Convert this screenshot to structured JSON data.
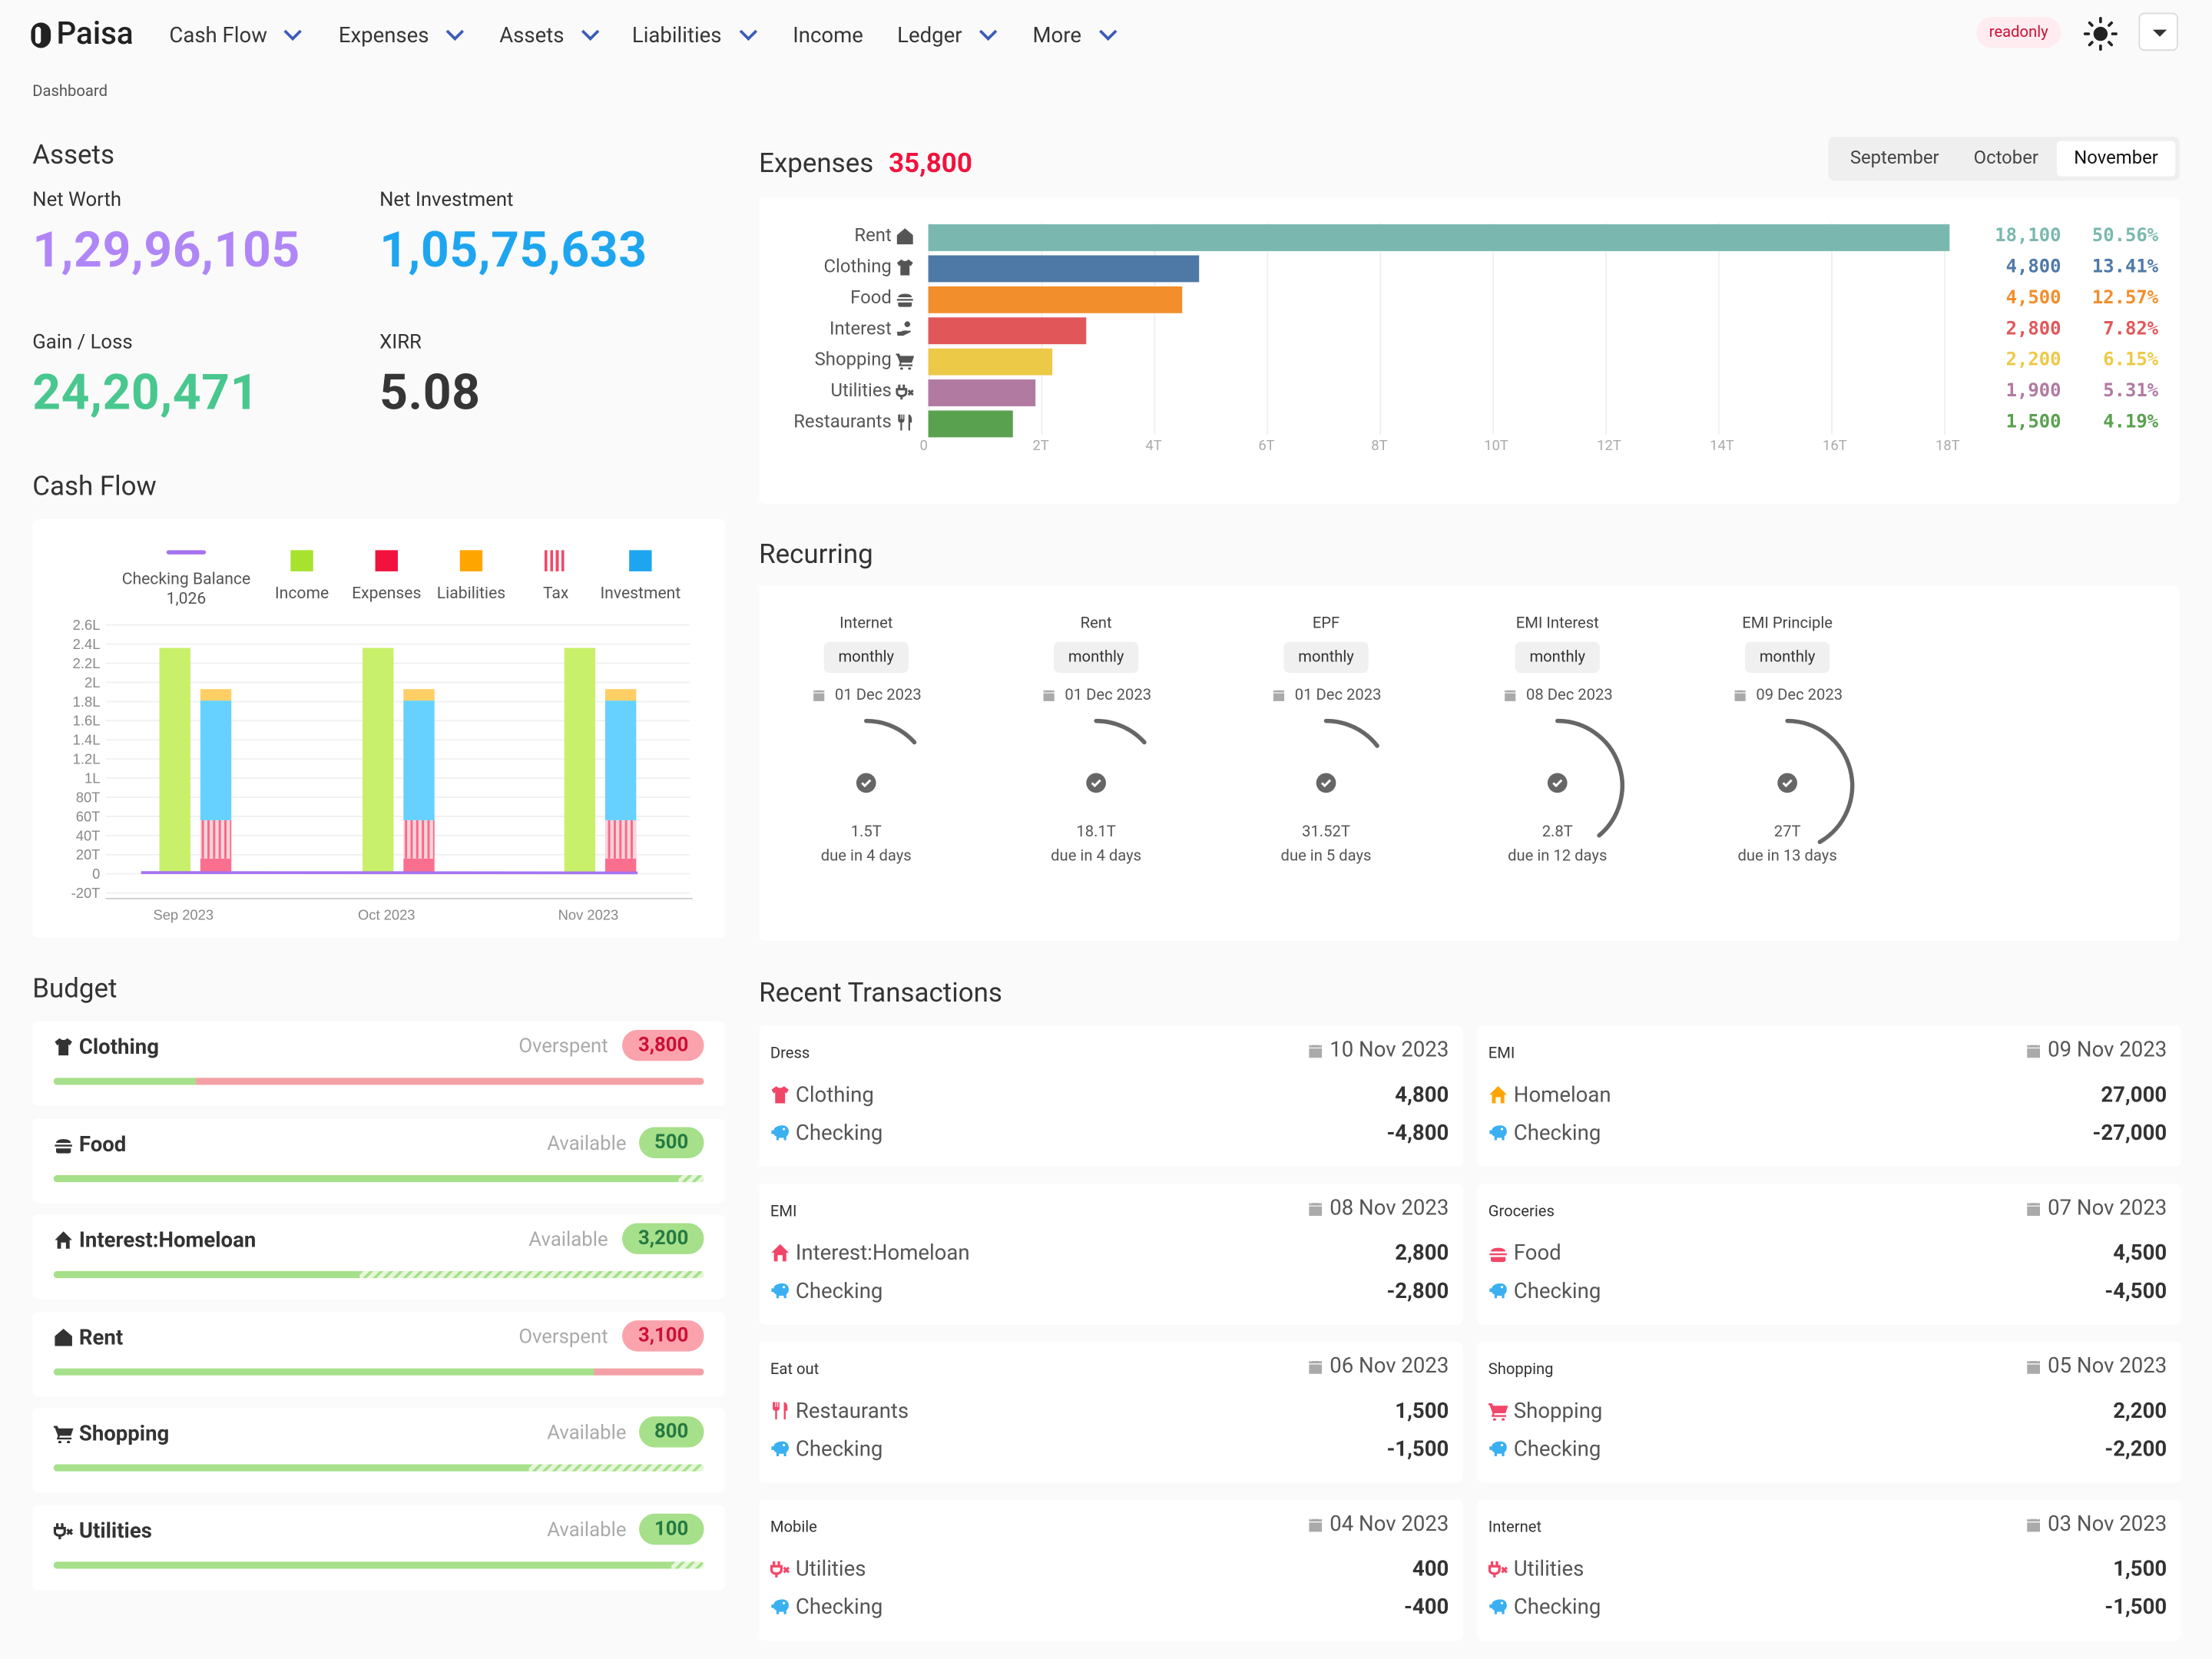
{
  "brand": "Paisa",
  "nav": [
    {
      "label": "Cash Flow",
      "dropdown": true
    },
    {
      "label": "Expenses",
      "dropdown": true
    },
    {
      "label": "Assets",
      "dropdown": true
    },
    {
      "label": "Liabilities",
      "dropdown": true
    },
    {
      "label": "Income",
      "dropdown": false
    },
    {
      "label": "Ledger",
      "dropdown": true
    },
    {
      "label": "More",
      "dropdown": true
    }
  ],
  "readonly": "readonly",
  "breadcrumb": "Dashboard",
  "assets": {
    "title": "Assets",
    "net_worth_label": "Net Worth",
    "net_worth": "1,29,96,105",
    "net_investment_label": "Net Investment",
    "net_investment": "1,05,75,633",
    "gain_label": "Gain / Loss",
    "gain": "24,20,471",
    "xirr_label": "XIRR",
    "xirr": "5.08"
  },
  "cashflow": {
    "title": "Cash Flow",
    "legend": [
      {
        "label": "Checking Balance",
        "sub": "1,026",
        "color": "#a574f0"
      },
      {
        "label": "Income",
        "color": "#a6e22e"
      },
      {
        "label": "Expenses",
        "color": "#f1123e"
      },
      {
        "label": "Liabilities",
        "color": "#ffa500"
      },
      {
        "label": "Tax",
        "color": "#f14668"
      },
      {
        "label": "Investment",
        "color": "#1ea5f0"
      }
    ]
  },
  "expenses": {
    "title": "Expenses",
    "total": "35,800",
    "months": [
      "September",
      "October",
      "November"
    ],
    "selected": "November"
  },
  "recurring_title": "Recurring",
  "recurring": [
    {
      "name": "Internet",
      "freq": "monthly",
      "date": "01 Dec 2023",
      "amount": "1.5T",
      "due": "due in 4 days"
    },
    {
      "name": "Rent",
      "freq": "monthly",
      "date": "01 Dec 2023",
      "amount": "18.1T",
      "due": "due in 4 days"
    },
    {
      "name": "EPF",
      "freq": "monthly",
      "date": "01 Dec 2023",
      "amount": "31.52T",
      "due": "due in 5 days"
    },
    {
      "name": "EMI Interest",
      "freq": "monthly",
      "date": "08 Dec 2023",
      "amount": "2.8T",
      "due": "due in 12 days"
    },
    {
      "name": "EMI Principle",
      "freq": "monthly",
      "date": "09 Dec 2023",
      "amount": "27T",
      "due": "due in 13 days"
    }
  ],
  "budget_title": "Budget",
  "budget": [
    {
      "name": "Clothing",
      "status": "Overspent",
      "amount": "3,800",
      "icon": "shirt-icon",
      "used": 0.22,
      "over": true
    },
    {
      "name": "Food",
      "status": "Available",
      "amount": "500",
      "icon": "burger-icon",
      "used": 0.96,
      "over": false
    },
    {
      "name": "Interest:Homeloan",
      "status": "Available",
      "amount": "3,200",
      "icon": "home-icon",
      "used": 0.47,
      "over": false
    },
    {
      "name": "Rent",
      "status": "Overspent",
      "amount": "3,100",
      "icon": "house-icon",
      "used": 0.83,
      "over": true
    },
    {
      "name": "Shopping",
      "status": "Available",
      "amount": "800",
      "icon": "cart-icon",
      "used": 0.73,
      "over": false
    },
    {
      "name": "Utilities",
      "status": "Available",
      "amount": "100",
      "icon": "plug-icon",
      "used": 0.95,
      "over": false
    }
  ],
  "tx_title": "Recent Transactions",
  "transactions": [
    {
      "desc": "Dress",
      "date": "10 Nov 2023",
      "a": "Clothing",
      "aicon": "shirt-icon",
      "acolor": "#f14668",
      "av": "4,800",
      "b": "Checking",
      "bv": "-4,800"
    },
    {
      "desc": "EMI",
      "date": "09 Nov 2023",
      "a": "Homeloan",
      "aicon": "home-icon",
      "acolor": "#ffa500",
      "av": "27,000",
      "b": "Checking",
      "bv": "-27,000"
    },
    {
      "desc": "EMI",
      "date": "08 Nov 2023",
      "a": "Interest:Homeloan",
      "aicon": "home-icon",
      "acolor": "#f14668",
      "av": "2,800",
      "b": "Checking",
      "bv": "-2,800"
    },
    {
      "desc": "Groceries",
      "date": "07 Nov 2023",
      "a": "Food",
      "aicon": "burger-icon",
      "acolor": "#f14668",
      "av": "4,500",
      "b": "Checking",
      "bv": "-4,500"
    },
    {
      "desc": "Eat out",
      "date": "06 Nov 2023",
      "a": "Restaurants",
      "aicon": "utensils-icon",
      "acolor": "#f14668",
      "av": "1,500",
      "b": "Checking",
      "bv": "-1,500"
    },
    {
      "desc": "Shopping",
      "date": "05 Nov 2023",
      "a": "Shopping",
      "aicon": "cart-icon",
      "acolor": "#f14668",
      "av": "2,200",
      "b": "Checking",
      "bv": "-2,200"
    },
    {
      "desc": "Mobile",
      "date": "04 Nov 2023",
      "a": "Utilities",
      "aicon": "plug-icon",
      "acolor": "#f14668",
      "av": "400",
      "b": "Checking",
      "bv": "-400"
    },
    {
      "desc": "Internet",
      "date": "03 Nov 2023",
      "a": "Utilities",
      "aicon": "plug-icon",
      "acolor": "#f14668",
      "av": "1,500",
      "b": "Checking",
      "bv": "-1,500"
    }
  ],
  "chart_data": [
    {
      "type": "bar",
      "orientation": "horizontal",
      "title": "Expenses",
      "categories": [
        "Rent",
        "Clothing",
        "Food",
        "Interest",
        "Shopping",
        "Utilities",
        "Restaurants"
      ],
      "values": [
        18100,
        4800,
        4500,
        2800,
        2200,
        1900,
        1500
      ],
      "value_labels": [
        "18,100",
        "4,800",
        "4,500",
        "2,800",
        "2,200",
        "1,900",
        "1,500"
      ],
      "percent_labels": [
        "50.56%",
        "13.41%",
        "12.57%",
        "7.82%",
        "6.15%",
        "5.31%",
        "4.19%"
      ],
      "colors": [
        "#7ab8af",
        "#4e79a7",
        "#f28e2b",
        "#e15759",
        "#edc948",
        "#b07aa1",
        "#59a14f"
      ],
      "icons": [
        "house-icon",
        "shirt-icon",
        "burger-icon",
        "hand-coin-icon",
        "cart-icon",
        "plug-icon",
        "utensils-icon"
      ],
      "xlim": [
        0,
        18000
      ],
      "xticks": [
        "0",
        "2T",
        "4T",
        "6T",
        "8T",
        "10T",
        "12T",
        "14T",
        "16T",
        "18T"
      ]
    },
    {
      "type": "bar",
      "stacked": true,
      "title": "Cash Flow",
      "categories": [
        "Sep 2023",
        "Oct 2023",
        "Nov 2023"
      ],
      "yticks": [
        "2.6L",
        "2.4L",
        "2.2L",
        "2L",
        "1.8L",
        "1.6L",
        "1.4L",
        "1.2L",
        "1L",
        "80T",
        "60T",
        "40T",
        "20T",
        "0",
        "-20T"
      ],
      "ylim": [
        -20000,
        260000
      ],
      "income": [
        236000,
        236000,
        236000
      ],
      "investment": [
        125000,
        125000,
        125000
      ],
      "tax": [
        40000,
        40000,
        40000
      ],
      "expenses": [
        16000,
        16000,
        16000
      ],
      "liabilities": [
        12000,
        12000,
        12000
      ],
      "checking_balance": [
        1300,
        1200,
        1026
      ]
    }
  ]
}
